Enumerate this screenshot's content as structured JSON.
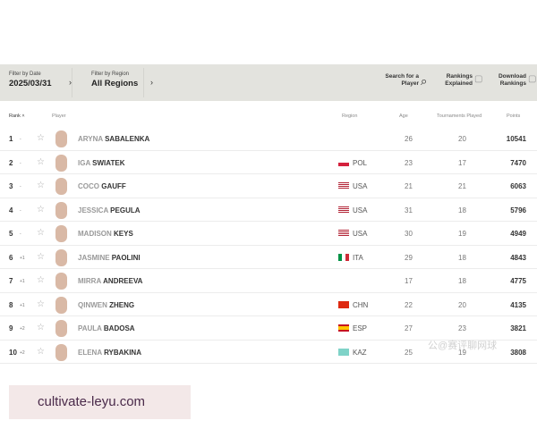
{
  "filters": {
    "date_label": "Filter by Date",
    "date_value": "2025/03/31",
    "region_label": "Filter by Region",
    "region_value": "All Regions"
  },
  "actions": {
    "search": "Search for a Player",
    "explained": "Rankings Explained",
    "download": "Download Rankings"
  },
  "columns": {
    "rank": "Rank",
    "player": "Player",
    "region": "Region",
    "age": "Age",
    "tournaments": "Tournaments Played",
    "points": "Points"
  },
  "rows": [
    {
      "rank": "1",
      "move": "-",
      "first": "ARYNA",
      "last": "SABALENKA",
      "flag": "",
      "region": "",
      "age": "26",
      "tp": "20",
      "points": "10541"
    },
    {
      "rank": "2",
      "move": "-",
      "first": "IGA",
      "last": "SWIATEK",
      "flag": "pol",
      "region": "POL",
      "age": "23",
      "tp": "17",
      "points": "7470"
    },
    {
      "rank": "3",
      "move": "-",
      "first": "COCO",
      "last": "GAUFF",
      "flag": "usa",
      "region": "USA",
      "age": "21",
      "tp": "21",
      "points": "6063"
    },
    {
      "rank": "4",
      "move": "-",
      "first": "JESSICA",
      "last": "PEGULA",
      "flag": "usa",
      "region": "USA",
      "age": "31",
      "tp": "18",
      "points": "5796"
    },
    {
      "rank": "5",
      "move": "-",
      "first": "MADISON",
      "last": "KEYS",
      "flag": "usa",
      "region": "USA",
      "age": "30",
      "tp": "19",
      "points": "4949"
    },
    {
      "rank": "6",
      "move": "+1",
      "first": "JASMINE",
      "last": "PAOLINI",
      "flag": "ita",
      "region": "ITA",
      "age": "29",
      "tp": "18",
      "points": "4843"
    },
    {
      "rank": "7",
      "move": "+1",
      "first": "MIRRA",
      "last": "ANDREEVA",
      "flag": "",
      "region": "",
      "age": "17",
      "tp": "18",
      "points": "4775"
    },
    {
      "rank": "8",
      "move": "+1",
      "first": "QINWEN",
      "last": "ZHENG",
      "flag": "chn",
      "region": "CHN",
      "age": "22",
      "tp": "20",
      "points": "4135"
    },
    {
      "rank": "9",
      "move": "+2",
      "first": "PAULA",
      "last": "BADOSA",
      "flag": "esp",
      "region": "ESP",
      "age": "27",
      "tp": "23",
      "points": "3821"
    },
    {
      "rank": "10",
      "move": "+2",
      "first": "ELENA",
      "last": "RYBAKINA",
      "flag": "kaz",
      "region": "KAZ",
      "age": "25",
      "tp": "19",
      "points": "3808"
    }
  ],
  "watermark": "cultivate-leyu.com",
  "cn_watermark": "公@赛评聊网球"
}
